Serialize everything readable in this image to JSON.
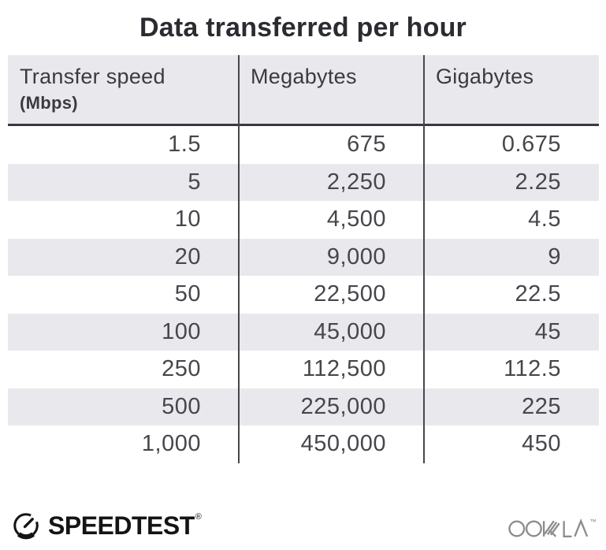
{
  "title": "Data transferred per hour",
  "table": {
    "header": {
      "col1_label": "Transfer speed",
      "col1_sublabel": "(Mbps)",
      "col2_label": "Megabytes",
      "col3_label": "Gigabytes"
    },
    "rows": [
      [
        "1.5",
        "675",
        "0.675"
      ],
      [
        "5",
        "2,250",
        "2.25"
      ],
      [
        "10",
        "4,500",
        "4.5"
      ],
      [
        "20",
        "9,000",
        "9"
      ],
      [
        "50",
        "22,500",
        "22.5"
      ],
      [
        "100",
        "45,000",
        "45"
      ],
      [
        "250",
        "112,500",
        "112.5"
      ],
      [
        "500",
        "225,000",
        "225"
      ],
      [
        "1,000",
        "450,000",
        "450"
      ]
    ]
  },
  "chart_data": {
    "type": "table",
    "title": "Data transferred per hour",
    "columns": [
      "Transfer speed (Mbps)",
      "Megabytes",
      "Gigabytes"
    ],
    "rows": [
      [
        1.5,
        675,
        0.675
      ],
      [
        5,
        2250,
        2.25
      ],
      [
        10,
        4500,
        4.5
      ],
      [
        20,
        9000,
        9
      ],
      [
        50,
        22500,
        22.5
      ],
      [
        100,
        45000,
        45
      ],
      [
        250,
        112500,
        112.5
      ],
      [
        500,
        225000,
        225
      ],
      [
        1000,
        450000,
        450
      ]
    ],
    "layout": {
      "alternating_row_shading": true,
      "column_dividers": true,
      "header_underline": true
    }
  },
  "footer": {
    "speedtest_label": "SPEEDTEST",
    "speedtest_mark": "®",
    "ookla_label": "OOKLA",
    "ookla_mark": "™"
  },
  "icons": {
    "speedtest-gauge-icon": "circular speedometer gauge with needle pointing upper-right (SVG arcs)",
    "ookla-wordmark-icon": "gray OOKLA wordmark with layered-stroke K and crossbar-less A (SVG strokes)"
  },
  "colors": {
    "title": "#2b2b31",
    "body_text": "#46464c",
    "row_alt_bg": "#e9e8ec",
    "divider_line": "#47474b",
    "header_rule": "#3a3a3e",
    "speedtest_black": "#141417",
    "ookla_gray": "#8d8d90",
    "background": "#ffffff"
  }
}
